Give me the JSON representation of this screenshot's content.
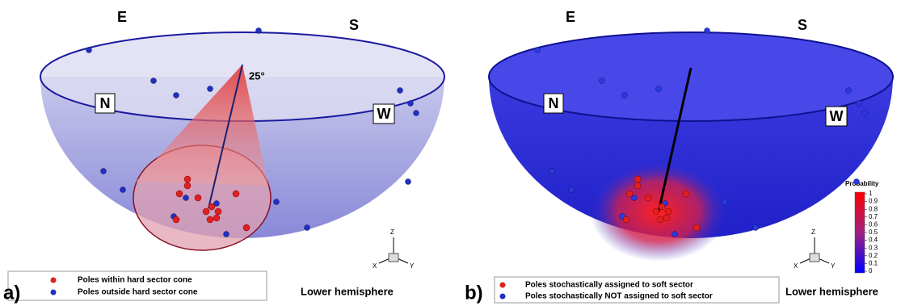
{
  "panels": [
    {
      "label": "a)",
      "compass": [
        "E",
        "S",
        "N",
        "W"
      ],
      "angle": "25°",
      "legend": [
        "Poles within hard sector cone",
        "Poles outside hard sector cone"
      ],
      "view": "Lower hemisphere",
      "axes": [
        "Z",
        "X",
        "Y"
      ]
    },
    {
      "label": "b)",
      "compass": [
        "E",
        "S",
        "N",
        "W"
      ],
      "legend": [
        "Poles stochastically assigned to soft sector",
        "Poles stochastically NOT assigned to soft sector"
      ],
      "view": "Lower hemisphere",
      "axes": [
        "Z",
        "X",
        "Y"
      ],
      "colorbar": {
        "title": "Probability",
        "ticks": [
          1,
          0.9,
          0.8,
          0.7,
          0.6,
          0.5,
          0.4,
          0.3,
          0.2,
          0.1,
          0
        ]
      }
    }
  ]
}
